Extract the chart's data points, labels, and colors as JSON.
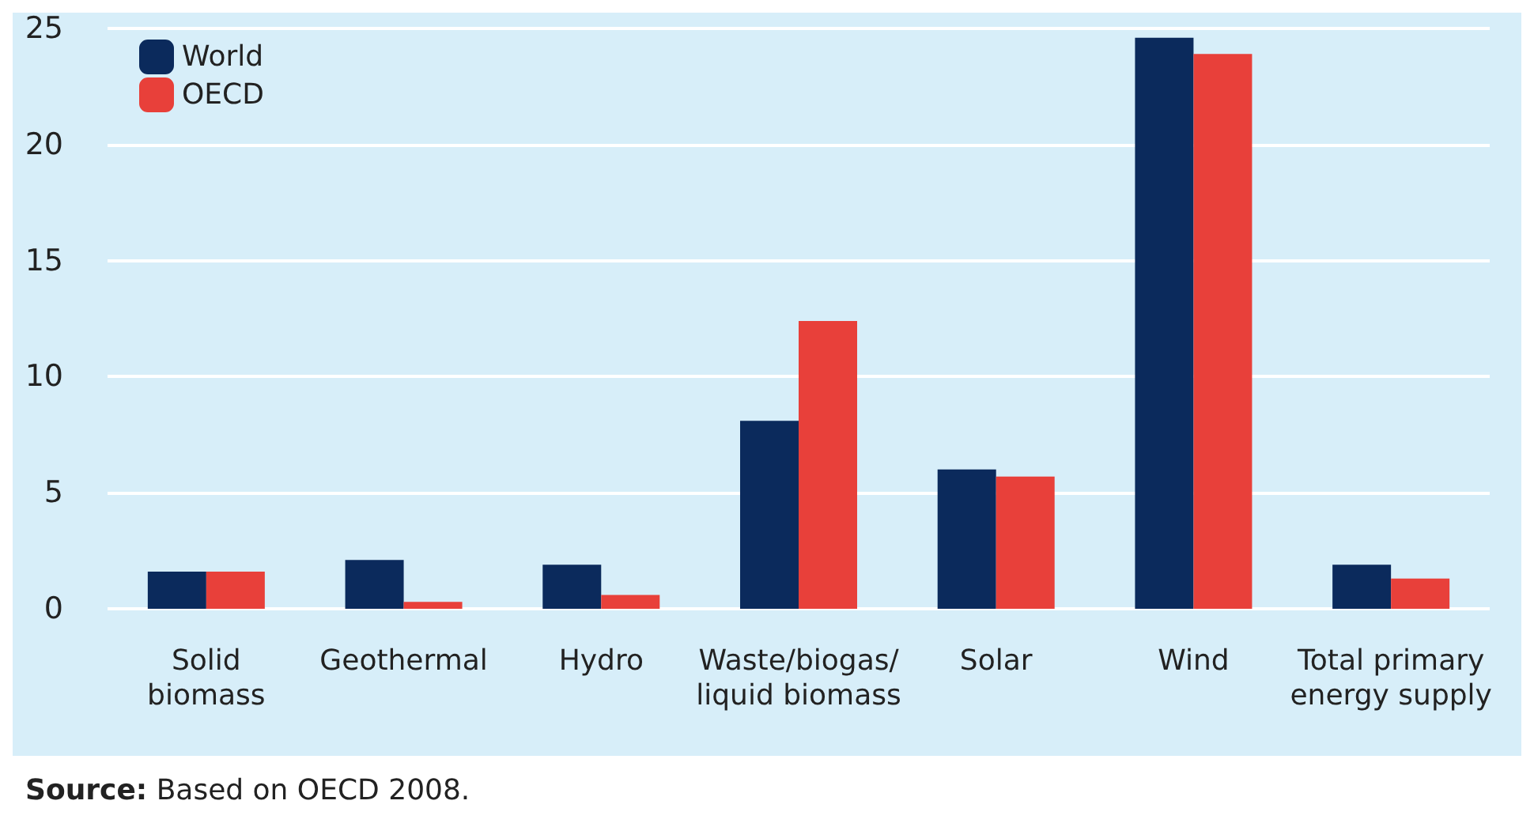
{
  "chart_data": {
    "type": "bar",
    "categories": [
      "Solid\nbiomass",
      "Geothermal",
      "Hydro",
      "Waste/biogas/\nliquid biomass",
      "Solar",
      "Wind",
      "Total primary\nenergy supply"
    ],
    "series": [
      {
        "name": "World",
        "color": "#0b2a5c",
        "values": [
          1.6,
          2.1,
          1.9,
          8.1,
          6.0,
          24.6,
          1.9
        ]
      },
      {
        "name": "OECD",
        "color": "#e8403a",
        "values": [
          1.6,
          0.3,
          0.6,
          12.4,
          5.7,
          23.9,
          1.3
        ]
      }
    ],
    "ylim": [
      0,
      25
    ],
    "yticks": [
      0,
      5,
      10,
      15,
      20,
      25
    ],
    "grid": "y",
    "legend": "top left",
    "annotations": [
      "Source: Based on OECD 2008."
    ]
  }
}
